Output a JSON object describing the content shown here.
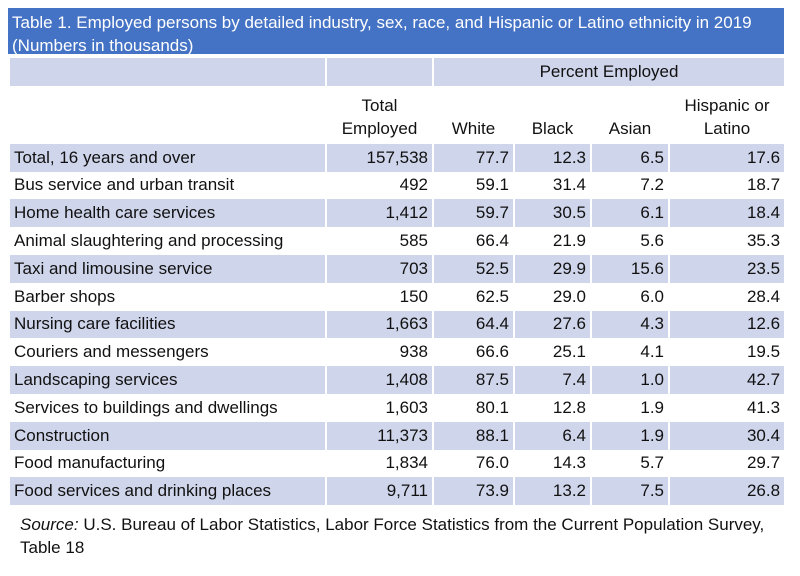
{
  "title": "Table 1. Employed persons by detailed industry, sex, race, and Hispanic or Latino ethnicity in 2019 (Numbers in thousands)",
  "table": {
    "group_header": "Percent Employed",
    "columns": [
      "Total Employed",
      "White",
      "Black",
      "Asian",
      "Hispanic or Latino"
    ],
    "rows": [
      [
        "Total, 16 years and over",
        "157,538",
        "77.7",
        "12.3",
        "6.5",
        "17.6"
      ],
      [
        "Bus service and urban transit",
        "492",
        "59.1",
        "31.4",
        "7.2",
        "18.7"
      ],
      [
        "Home health care services",
        "1,412",
        "59.7",
        "30.5",
        "6.1",
        "18.4"
      ],
      [
        "Animal slaughtering and processing",
        "585",
        "66.4",
        "21.9",
        "5.6",
        "35.3"
      ],
      [
        "Taxi and limousine service",
        "703",
        "52.5",
        "29.9",
        "15.6",
        "23.5"
      ],
      [
        "Barber shops",
        "150",
        "62.5",
        "29.0",
        "6.0",
        "28.4"
      ],
      [
        "Nursing care facilities",
        "1,663",
        "64.4",
        "27.6",
        "4.3",
        "12.6"
      ],
      [
        "Couriers and messengers",
        "938",
        "66.6",
        "25.1",
        "4.1",
        "19.5"
      ],
      [
        "Landscaping services",
        "1,408",
        "87.5",
        "7.4",
        "1.0",
        "42.7"
      ],
      [
        "Services to buildings and dwellings",
        "1,603",
        "80.1",
        "12.8",
        "1.9",
        "41.3"
      ],
      [
        "Construction",
        "11,373",
        "88.1",
        "6.4",
        "1.9",
        "30.4"
      ],
      [
        "Food manufacturing",
        "1,834",
        "76.0",
        "14.3",
        "5.7",
        "29.7"
      ],
      [
        "Food services and drinking places",
        "9,711",
        "73.9",
        "13.2",
        "7.5",
        "26.8"
      ]
    ]
  },
  "source": {
    "label": "Source:",
    "text": "U.S. Bureau of Labor Statistics, Labor Force Statistics from the Current Population Survey, Table 18"
  }
}
